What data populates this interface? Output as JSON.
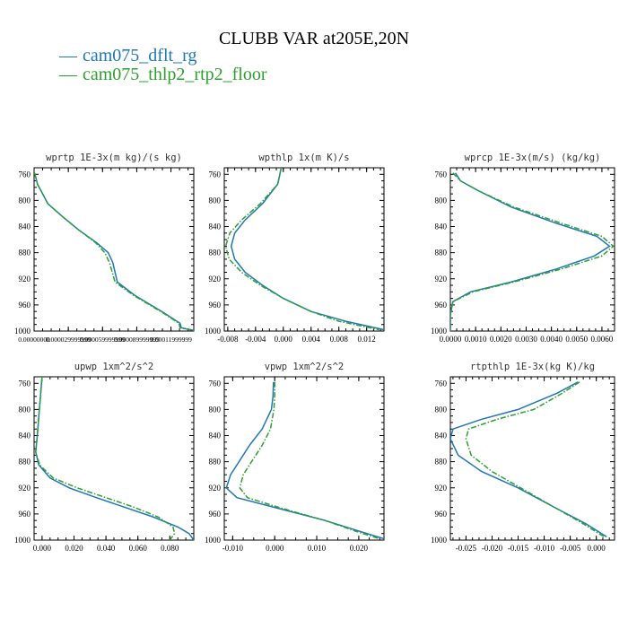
{
  "title": "CLUBB VAR at205E,20N",
  "legend": [
    {
      "label": "cam075_dflt_rg",
      "color": "#1f77b4",
      "dash": "—"
    },
    {
      "label": "cam075_thlp2_rtp2_floor",
      "color": "#2ca02c",
      "dash": "—"
    }
  ],
  "chart_data": [
    {
      "type": "line",
      "title": "wprtp  1E-3x(m kg)/(s kg)",
      "xlim": [
        0,
        0.00014
      ],
      "ylim": [
        1000,
        750
      ],
      "xticks": [
        0,
        3e-05,
        6e-05,
        9e-05,
        0.00012
      ],
      "xticklabels": [
        "0.00000000",
        "0.000029999999",
        "0.000059999999",
        "0.000089999999",
        "0.00011999999"
      ],
      "yticks": [
        760,
        800,
        840,
        880,
        920,
        960,
        1000
      ],
      "series": [
        {
          "color": "#1f77b4",
          "style": "solid",
          "x": [
            5e-07,
            3e-06,
            1.2e-05,
            2.5e-05,
            3.9e-05,
            5.5e-05,
            6.5e-05,
            6.9e-05,
            7.3e-05,
            8.8e-05,
            0.000112,
            0.000128,
            0.000129,
            0.00014
          ],
          "y": [
            758,
            775,
            805,
            825,
            845,
            865,
            880,
            895,
            925,
            945,
            970,
            988,
            995,
            999
          ]
        },
        {
          "color": "#2ca02c",
          "style": "dashdot",
          "x": [
            5e-07,
            3e-06,
            1.2e-05,
            2.5e-05,
            3.9e-05,
            5.4e-05,
            6.2e-05,
            6.6e-05,
            7.1e-05,
            8.7e-05,
            0.000111,
            0.000127,
            0.000128,
            0.00014
          ],
          "y": [
            758,
            775,
            805,
            825,
            845,
            865,
            880,
            895,
            925,
            945,
            970,
            988,
            995,
            999
          ]
        }
      ]
    },
    {
      "type": "line",
      "title": "wpthlp  1x(m K)/s",
      "xlim": [
        -0.0085,
        0.0145
      ],
      "ylim": [
        1000,
        750
      ],
      "xticks": [
        -0.008,
        -0.004,
        0.0,
        0.004,
        0.008,
        0.012
      ],
      "xticklabels": [
        "-0.008",
        "-0.004",
        "0.000",
        "0.004",
        "0.008",
        "0.012"
      ],
      "yticks": [
        760,
        800,
        840,
        880,
        920,
        960,
        1000
      ],
      "series": [
        {
          "color": "#1f77b4",
          "style": "solid",
          "x": [
            -0.0003,
            -0.0008,
            -0.003,
            -0.0055,
            -0.007,
            -0.0075,
            -0.007,
            -0.0055,
            -0.003,
            0.0,
            0.004,
            0.009,
            0.0145
          ],
          "y": [
            750,
            775,
            805,
            830,
            850,
            870,
            890,
            910,
            930,
            950,
            970,
            985,
            998
          ]
        },
        {
          "color": "#2ca02c",
          "style": "dashdot",
          "x": [
            -0.0003,
            -0.0008,
            -0.0033,
            -0.006,
            -0.0077,
            -0.0083,
            -0.0078,
            -0.006,
            -0.0033,
            0.0,
            0.004,
            0.008,
            0.0138
          ],
          "y": [
            750,
            775,
            805,
            830,
            850,
            870,
            890,
            910,
            930,
            950,
            970,
            985,
            998
          ]
        }
      ]
    },
    {
      "type": "line",
      "title": "wprcp  1E-3x(m/s) (kg/kg)",
      "xlim": [
        0,
        0.0065
      ],
      "ylim": [
        1000,
        750
      ],
      "xticks": [
        0,
        0.001,
        0.002,
        0.003,
        0.004,
        0.005,
        0.006
      ],
      "xticklabels": [
        "0.0000",
        "0.0010",
        "0.0020",
        "0.0030",
        "0.0040",
        "0.0050",
        "0.0060"
      ],
      "yticks": [
        760,
        800,
        840,
        880,
        920,
        960,
        1000
      ],
      "series": [
        {
          "color": "#1f77b4",
          "style": "solid",
          "x": [
            0.0002,
            0.0004,
            0.0011,
            0.0024,
            0.0042,
            0.0058,
            0.0063,
            0.0057,
            0.0042,
            0.0024,
            0.0008,
            0.0001,
            0.0,
            0.0
          ],
          "y": [
            758,
            770,
            785,
            810,
            835,
            855,
            870,
            885,
            905,
            925,
            940,
            955,
            975,
            1000
          ]
        },
        {
          "color": "#2ca02c",
          "style": "dashdot",
          "x": [
            0.0001,
            0.0004,
            0.0011,
            0.0025,
            0.0044,
            0.006,
            0.00645,
            0.006,
            0.0044,
            0.0025,
            0.0009,
            0.0001,
            0.0,
            0.0
          ],
          "y": [
            758,
            770,
            785,
            810,
            835,
            855,
            870,
            885,
            905,
            925,
            940,
            955,
            975,
            1000
          ]
        }
      ]
    },
    {
      "type": "line",
      "title": "upwp  1xm^2/s^2",
      "xlim": [
        -0.005,
        0.095
      ],
      "ylim": [
        1000,
        750
      ],
      "xticks": [
        0,
        0.02,
        0.04,
        0.06,
        0.08
      ],
      "xticklabels": [
        "0.000",
        "0.020",
        "0.040",
        "0.060",
        "0.080"
      ],
      "yticks": [
        760,
        800,
        840,
        880,
        920,
        960,
        1000
      ],
      "series": [
        {
          "color": "#1f77b4",
          "style": "solid",
          "x": [
            0.0,
            -0.001,
            -0.002,
            -0.003,
            -0.004,
            -0.002,
            0.005,
            0.017,
            0.034,
            0.052,
            0.07,
            0.085,
            0.092,
            0.095
          ],
          "y": [
            750,
            780,
            810,
            840,
            865,
            885,
            905,
            920,
            935,
            950,
            965,
            980,
            990,
            1000
          ]
        },
        {
          "color": "#2ca02c",
          "style": "dashdot",
          "x": [
            0.0,
            -0.001,
            -0.002,
            -0.003,
            -0.004,
            -0.0015,
            0.007,
            0.022,
            0.04,
            0.058,
            0.073,
            0.082,
            0.083,
            0.08
          ],
          "y": [
            750,
            780,
            810,
            840,
            865,
            885,
            905,
            920,
            935,
            950,
            965,
            980,
            990,
            1000
          ]
        }
      ]
    },
    {
      "type": "line",
      "title": "vpwp  1xm^2/s^2",
      "xlim": [
        -0.012,
        0.026
      ],
      "ylim": [
        1000,
        750
      ],
      "xticks": [
        -0.01,
        0.0,
        0.01,
        0.02
      ],
      "xticklabels": [
        "-0.010",
        "0.000",
        "0.010",
        "0.020"
      ],
      "yticks": [
        760,
        800,
        840,
        880,
        920,
        960,
        1000
      ],
      "series": [
        {
          "color": "#1f77b4",
          "style": "solid",
          "x": [
            -0.0003,
            -0.0004,
            -0.0008,
            -0.003,
            -0.006,
            -0.0085,
            -0.0105,
            -0.0115,
            -0.009,
            0.0,
            0.012,
            0.021,
            0.026
          ],
          "y": [
            758,
            780,
            800,
            830,
            855,
            880,
            900,
            920,
            935,
            950,
            970,
            988,
            998
          ]
        },
        {
          "color": "#2ca02c",
          "style": "dashdot",
          "x": [
            0.0,
            0.0,
            -0.0002,
            -0.001,
            -0.003,
            -0.0055,
            -0.0075,
            -0.0083,
            -0.0065,
            0.001,
            0.012,
            0.02,
            0.025
          ],
          "y": [
            758,
            780,
            800,
            830,
            855,
            880,
            900,
            920,
            935,
            950,
            970,
            988,
            998
          ]
        }
      ]
    },
    {
      "type": "line",
      "title": "rtpthlp  1E-3x(kg K)/kg",
      "xlim": [
        -0.028,
        0.0035
      ],
      "ylim": [
        1000,
        750
      ],
      "xticks": [
        -0.025,
        -0.02,
        -0.015,
        -0.01,
        -0.005,
        0.0
      ],
      "xticklabels": [
        "-0.025",
        "-0.020",
        "-0.015",
        "-0.010",
        "-0.005",
        "0.000"
      ],
      "yticks": [
        760,
        800,
        840,
        880,
        920,
        960,
        1000
      ],
      "series": [
        {
          "color": "#1f77b4",
          "style": "solid",
          "x": [
            -0.0035,
            -0.0075,
            -0.015,
            -0.022,
            -0.0275,
            -0.028,
            -0.0265,
            -0.022,
            -0.015,
            -0.008,
            -0.002,
            0.002
          ],
          "y": [
            758,
            775,
            800,
            815,
            830,
            845,
            870,
            895,
            920,
            950,
            975,
            995
          ]
        },
        {
          "color": "#2ca02c",
          "style": "dashdot",
          "x": [
            -0.0032,
            -0.0065,
            -0.012,
            -0.019,
            -0.0245,
            -0.025,
            -0.024,
            -0.02,
            -0.0145,
            -0.008,
            -0.0025,
            0.0015
          ],
          "y": [
            758,
            775,
            800,
            815,
            830,
            845,
            870,
            895,
            920,
            950,
            975,
            995
          ]
        }
      ]
    }
  ]
}
